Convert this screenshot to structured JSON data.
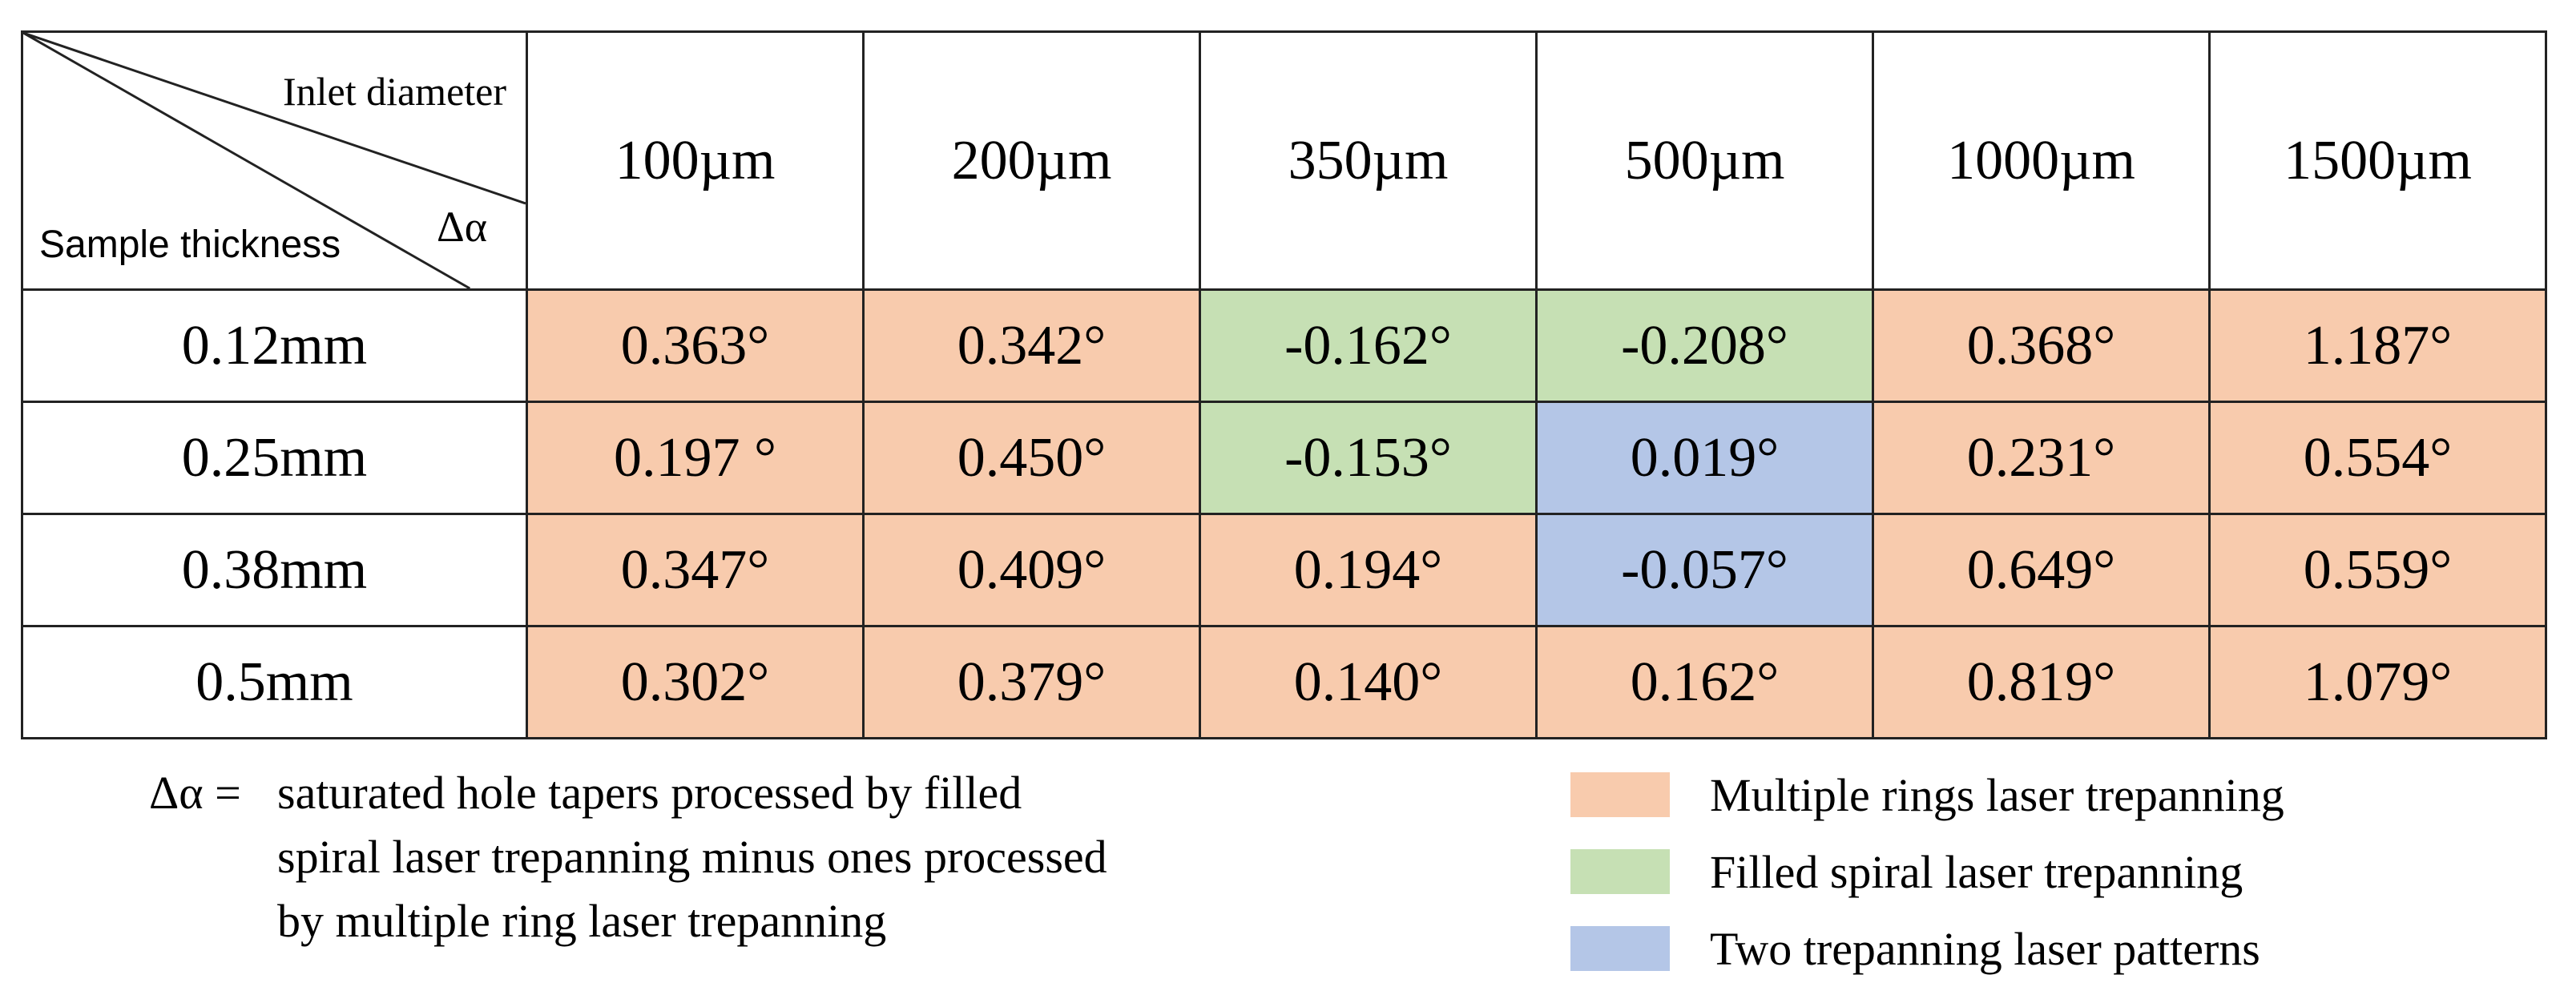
{
  "chart_data": {
    "type": "table",
    "corner": {
      "column_axis_label": "Inlet diameter",
      "row_axis_label": "Sample thickness",
      "value_symbol": "Δα"
    },
    "columns": [
      "100µm",
      "200µm",
      "350µm",
      "500µm",
      "1000µm",
      "1500µm"
    ],
    "rows": [
      {
        "label": "0.12mm",
        "cells": [
          {
            "text": "0.363°",
            "value": 0.363,
            "category": "multi"
          },
          {
            "text": "0.342°",
            "value": 0.342,
            "category": "multi"
          },
          {
            "text": "-0.162°",
            "value": -0.162,
            "category": "spiral"
          },
          {
            "text": "-0.208°",
            "value": -0.208,
            "category": "spiral"
          },
          {
            "text": "0.368°",
            "value": 0.368,
            "category": "multi"
          },
          {
            "text": "1.187°",
            "value": 1.187,
            "category": "multi"
          }
        ]
      },
      {
        "label": "0.25mm",
        "cells": [
          {
            "text": "0.197 °",
            "value": 0.197,
            "category": "multi"
          },
          {
            "text": "0.450°",
            "value": 0.45,
            "category": "multi"
          },
          {
            "text": "-0.153°",
            "value": -0.153,
            "category": "spiral"
          },
          {
            "text": "0.019°",
            "value": 0.019,
            "category": "two"
          },
          {
            "text": "0.231°",
            "value": 0.231,
            "category": "multi"
          },
          {
            "text": "0.554°",
            "value": 0.554,
            "category": "multi"
          }
        ]
      },
      {
        "label": "0.38mm",
        "cells": [
          {
            "text": "0.347°",
            "value": 0.347,
            "category": "multi"
          },
          {
            "text": "0.409°",
            "value": 0.409,
            "category": "multi"
          },
          {
            "text": "0.194°",
            "value": 0.194,
            "category": "multi"
          },
          {
            "text": "-0.057°",
            "value": -0.057,
            "category": "two"
          },
          {
            "text": "0.649°",
            "value": 0.649,
            "category": "multi"
          },
          {
            "text": "0.559°",
            "value": 0.559,
            "category": "multi"
          }
        ]
      },
      {
        "label": "0.5mm",
        "cells": [
          {
            "text": "0.302°",
            "value": 0.302,
            "category": "multi"
          },
          {
            "text": "0.379°",
            "value": 0.379,
            "category": "multi"
          },
          {
            "text": "0.140°",
            "value": 0.14,
            "category": "multi"
          },
          {
            "text": "0.162°",
            "value": 0.162,
            "category": "multi"
          },
          {
            "text": "0.819°",
            "value": 0.819,
            "category": "multi"
          },
          {
            "text": "1.079°",
            "value": 1.079,
            "category": "multi"
          }
        ]
      }
    ],
    "legend": [
      {
        "category": "multi",
        "label": "Multiple rings laser trepanning",
        "color": "#f8cbad"
      },
      {
        "category": "spiral",
        "label": "Filled spiral laser trepanning",
        "color": "#c6e0b4"
      },
      {
        "category": "two",
        "label": "Two trepanning  laser patterns",
        "color": "#b4c6e7"
      }
    ],
    "footnote": {
      "symbol": "Δα =",
      "lines": [
        "saturated hole tapers processed by filled",
        "spiral laser trepanning  minus ones processed",
        "by multiple ring laser trepanning"
      ]
    }
  }
}
